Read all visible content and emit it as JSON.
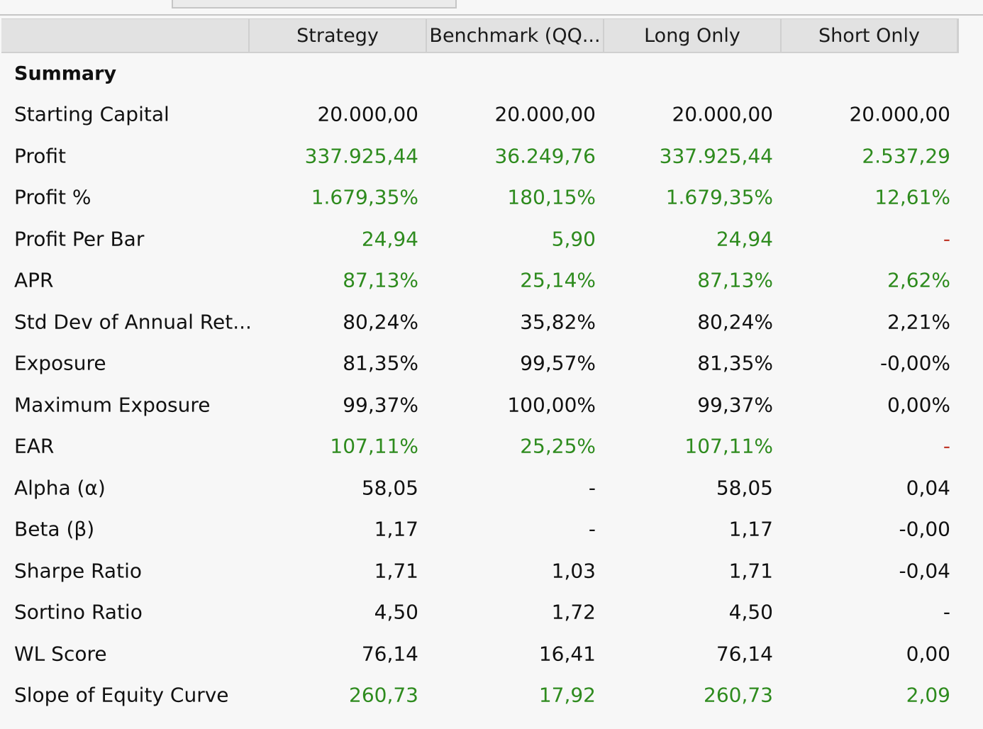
{
  "columns": [
    "",
    "Strategy",
    "Benchmark (QQ...",
    "Long Only",
    "Short Only"
  ],
  "section_title": "Summary",
  "colors": {
    "positive": "#2e8b1e",
    "negative": "#c0392b",
    "neutral": "#111111",
    "header_bg": "#e2e2e2",
    "page_bg": "#f7f7f7"
  },
  "rows": [
    {
      "label": "Starting Capital",
      "values": [
        "20.000,00",
        "20.000,00",
        "20.000,00",
        "20.000,00"
      ],
      "styles": [
        "neutral",
        "neutral",
        "neutral",
        "neutral"
      ]
    },
    {
      "label": "Profit",
      "values": [
        "337.925,44",
        "36.249,76",
        "337.925,44",
        "2.537,29"
      ],
      "styles": [
        "pos",
        "pos",
        "pos",
        "pos"
      ]
    },
    {
      "label": "Profit %",
      "values": [
        "1.679,35%",
        "180,15%",
        "1.679,35%",
        "12,61%"
      ],
      "styles": [
        "pos",
        "pos",
        "pos",
        "pos"
      ]
    },
    {
      "label": "Profit Per Bar",
      "values": [
        "24,94",
        "5,90",
        "24,94",
        "-"
      ],
      "styles": [
        "pos",
        "pos",
        "pos",
        "neg"
      ]
    },
    {
      "label": "APR",
      "values": [
        "87,13%",
        "25,14%",
        "87,13%",
        "2,62%"
      ],
      "styles": [
        "pos",
        "pos",
        "pos",
        "pos"
      ]
    },
    {
      "label": "Std Dev of Annual Ret...",
      "values": [
        "80,24%",
        "35,82%",
        "80,24%",
        "2,21%"
      ],
      "styles": [
        "neutral",
        "neutral",
        "neutral",
        "neutral"
      ]
    },
    {
      "label": "Exposure",
      "values": [
        "81,35%",
        "99,57%",
        "81,35%",
        "-0,00%"
      ],
      "styles": [
        "neutral",
        "neutral",
        "neutral",
        "neutral"
      ]
    },
    {
      "label": "Maximum Exposure",
      "values": [
        "99,37%",
        "100,00%",
        "99,37%",
        "0,00%"
      ],
      "styles": [
        "neutral",
        "neutral",
        "neutral",
        "neutral"
      ]
    },
    {
      "label": "EAR",
      "values": [
        "107,11%",
        "25,25%",
        "107,11%",
        "-"
      ],
      "styles": [
        "pos",
        "pos",
        "pos",
        "neg"
      ]
    },
    {
      "label": "Alpha (α)",
      "values": [
        "58,05",
        "-",
        "58,05",
        "0,04"
      ],
      "styles": [
        "neutral",
        "neutral",
        "neutral",
        "neutral"
      ]
    },
    {
      "label": "Beta (β)",
      "values": [
        "1,17",
        "-",
        "1,17",
        "-0,00"
      ],
      "styles": [
        "neutral",
        "neutral",
        "neutral",
        "neutral"
      ]
    },
    {
      "label": "Sharpe Ratio",
      "values": [
        "1,71",
        "1,03",
        "1,71",
        "-0,04"
      ],
      "styles": [
        "neutral",
        "neutral",
        "neutral",
        "neutral"
      ]
    },
    {
      "label": "Sortino Ratio",
      "values": [
        "4,50",
        "1,72",
        "4,50",
        "-"
      ],
      "styles": [
        "neutral",
        "neutral",
        "neutral",
        "neutral"
      ]
    },
    {
      "label": "WL Score",
      "values": [
        "76,14",
        "16,41",
        "76,14",
        "0,00"
      ],
      "styles": [
        "neutral",
        "neutral",
        "neutral",
        "neutral"
      ]
    },
    {
      "label": "Slope of Equity Curve",
      "values": [
        "260,73",
        "17,92",
        "260,73",
        "2,09"
      ],
      "styles": [
        "pos",
        "pos",
        "pos",
        "pos"
      ]
    }
  ]
}
